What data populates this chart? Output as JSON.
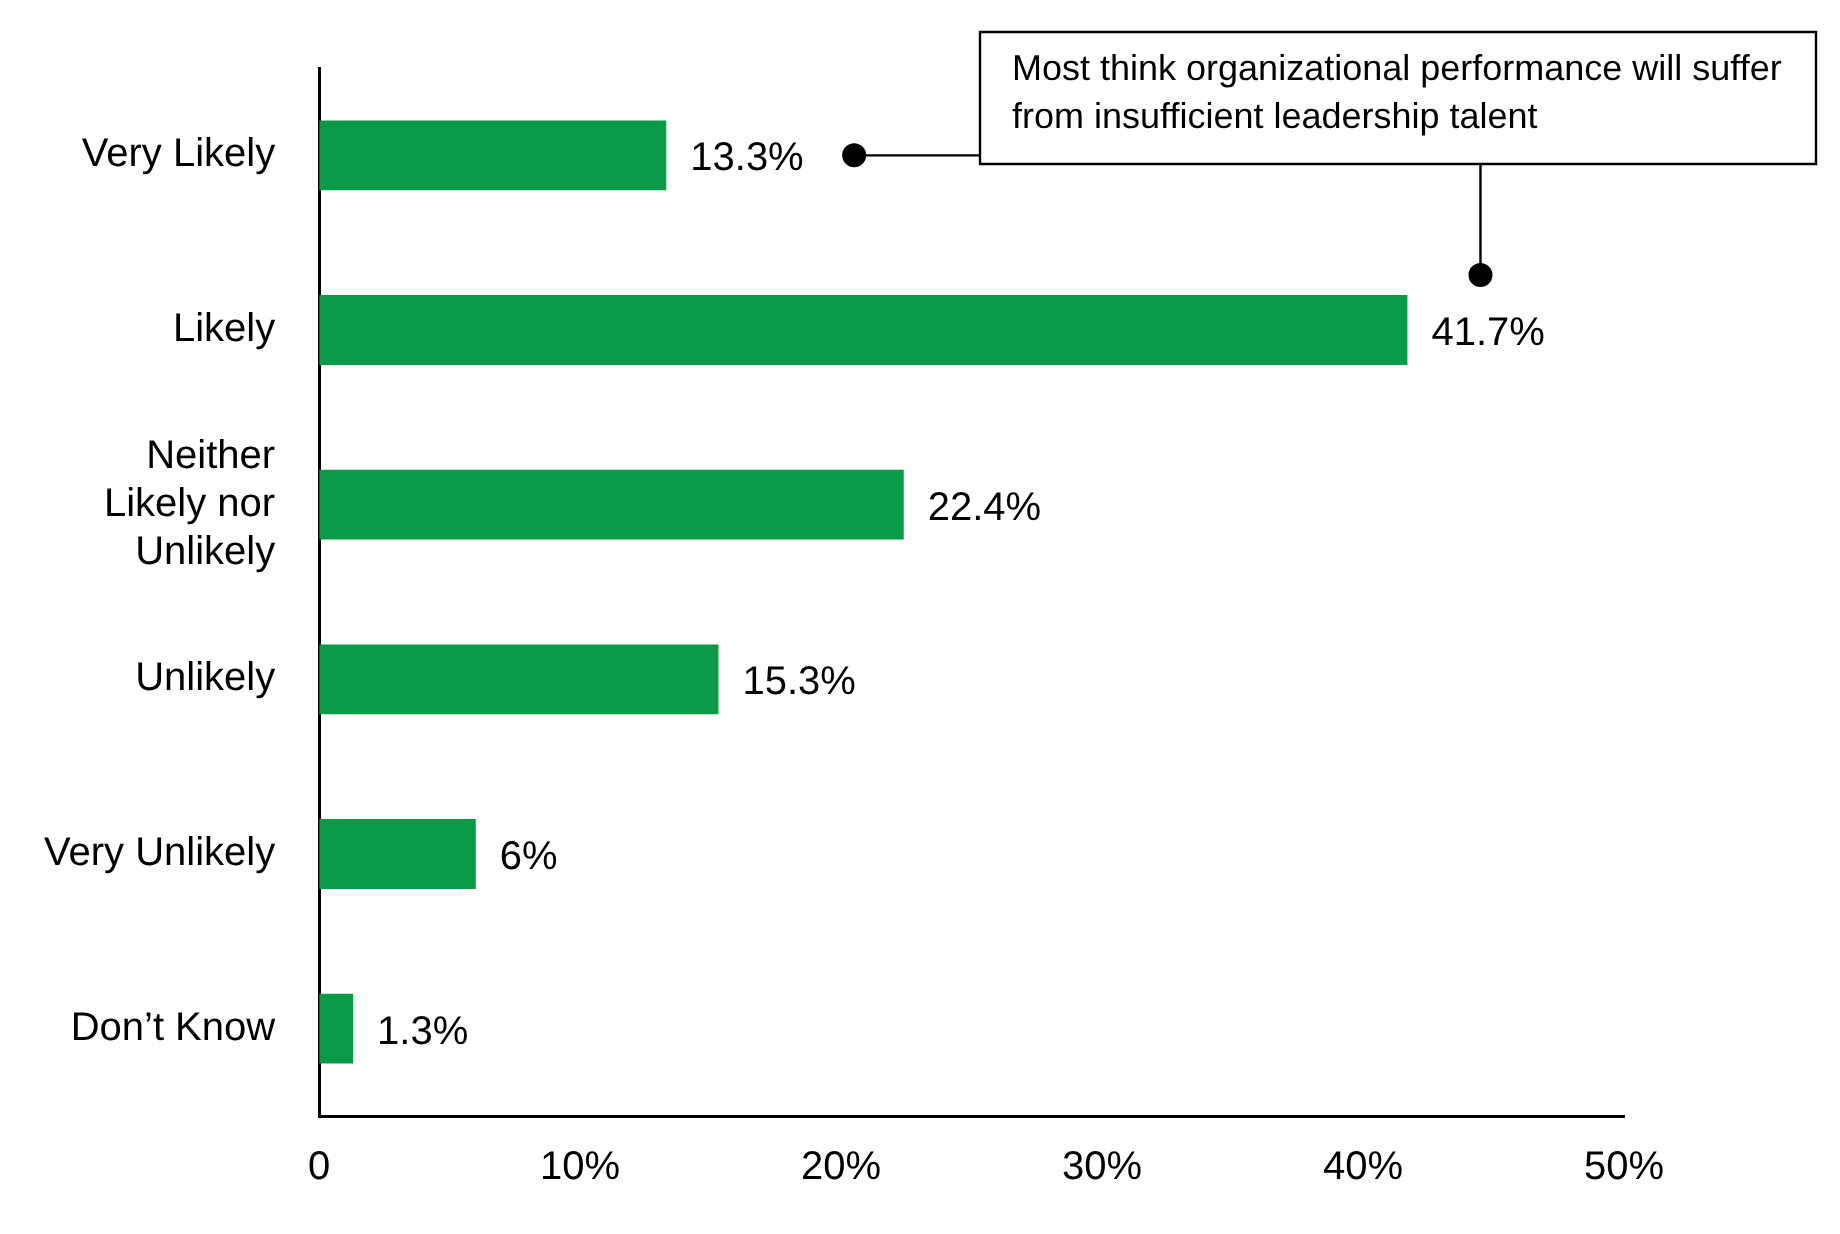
{
  "chart_data": {
    "type": "bar",
    "orientation": "horizontal",
    "categories": [
      "Very Likely",
      "Likely",
      "Neither Likely nor Unlikely",
      "Unlikely",
      "Very Unlikely",
      "Don’t Know"
    ],
    "values": [
      13.3,
      41.7,
      22.4,
      15.3,
      6,
      1.3
    ],
    "value_labels": [
      "13.3%",
      "41.7%",
      "22.4%",
      "15.3%",
      "6%",
      "1.3%"
    ],
    "color": "#0a9a48",
    "xlim": [
      0,
      50
    ],
    "xticks": [
      0,
      {
        "value": 10,
        "label": "10%"
      },
      {
        "value": 20,
        "label": "20%"
      },
      {
        "value": 30,
        "label": "30%"
      },
      {
        "value": 40,
        "label": "40%"
      },
      {
        "value": 50,
        "label": "50%"
      }
    ],
    "grid": false,
    "legend": false,
    "annotations": [
      "Most think organizational performance will suffer from insufficient leadership talent"
    ]
  }
}
